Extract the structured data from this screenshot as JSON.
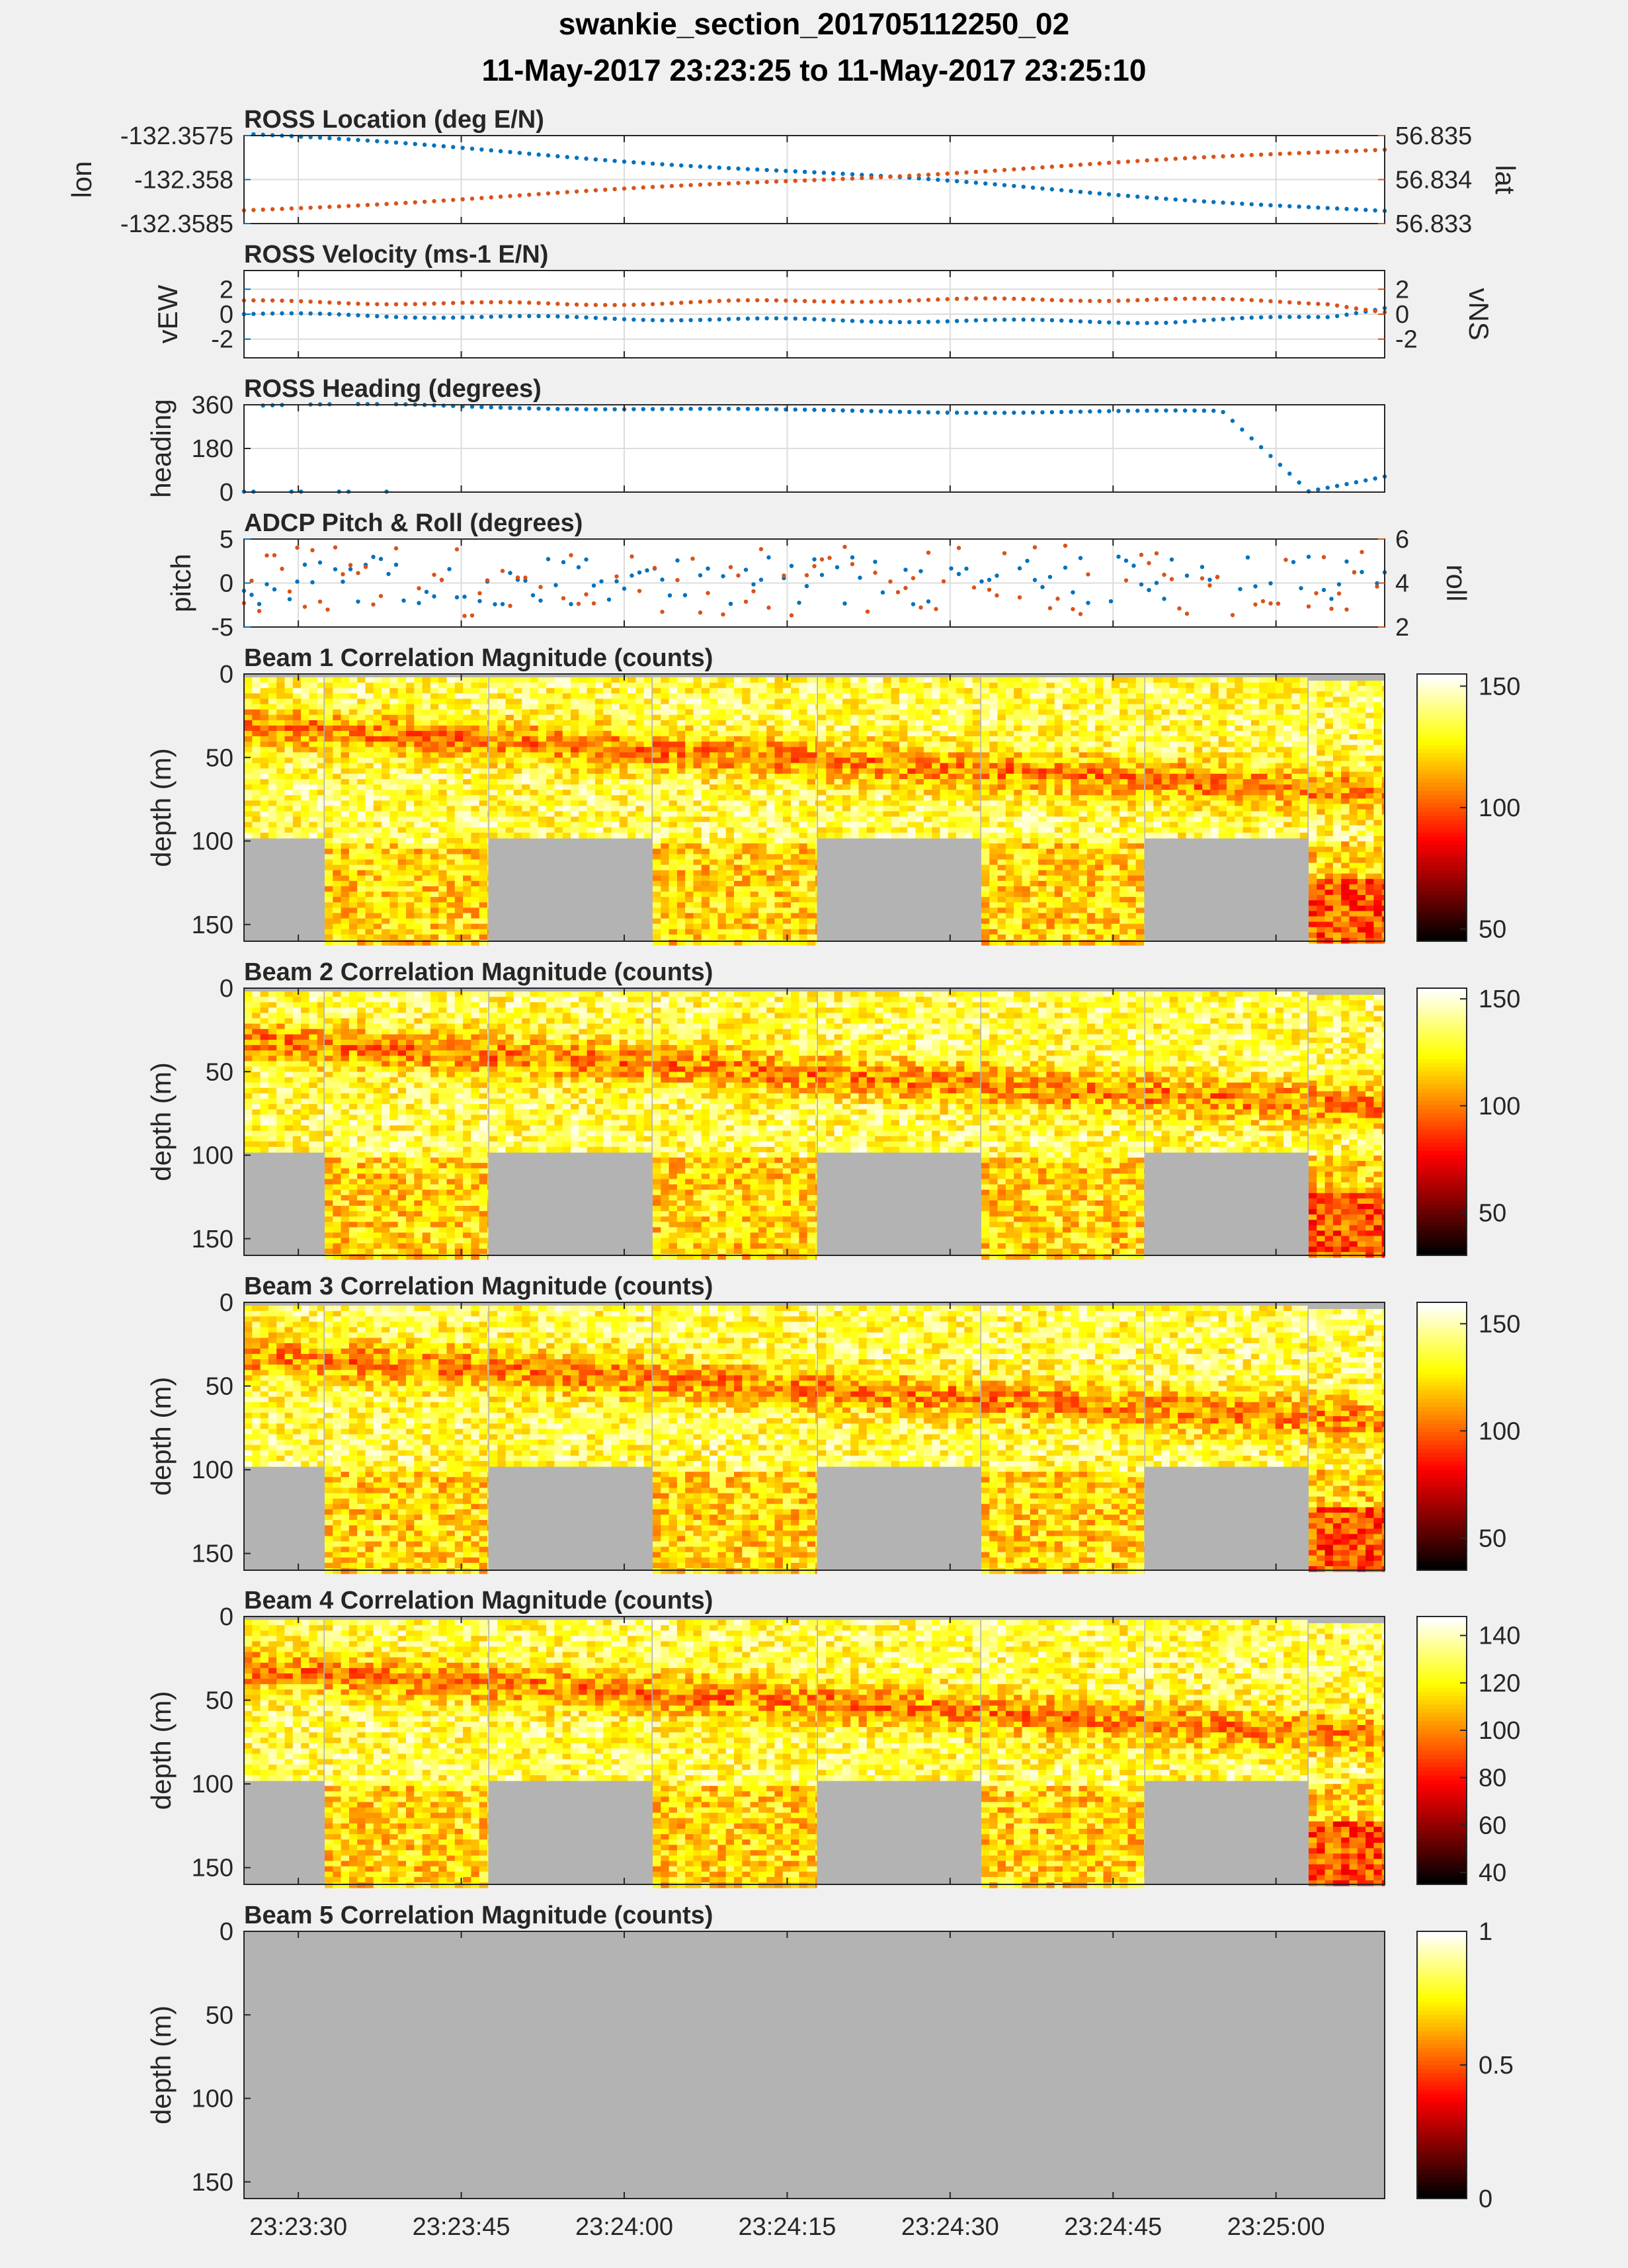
{
  "figure": {
    "title_line1": "swankie_section_201705112250_02",
    "title_line2": "11-May-2017 23:23:25 to 11-May-2017 23:25:10"
  },
  "time_axis": {
    "ticks": [
      "23:23:30",
      "23:23:45",
      "23:24:00",
      "23:24:15",
      "23:24:30",
      "23:24:45",
      "23:25:00"
    ],
    "range": [
      "23:23:25",
      "23:25:10"
    ]
  },
  "colors": {
    "blue": "#0072BD",
    "orange": "#D95319",
    "nodata": "#B3B3B3",
    "axes_bg": "#FFFFFF",
    "figure_bg": "#F0F0F0",
    "colormap": "hot"
  },
  "chart_data": [
    {
      "type": "scatter",
      "title": "ROSS Location (deg E/N)",
      "ylabel": "lon",
      "ylabel_right": "lat",
      "ylim": [
        -132.3585,
        -132.3575
      ],
      "ylim_right": [
        56.833,
        56.835
      ],
      "yticks": [
        "-132.3575",
        "-132.358",
        "-132.3585"
      ],
      "yticks_right": [
        "56.835",
        "56.834",
        "56.833"
      ],
      "series": [
        {
          "name": "lon",
          "axis": "left",
          "color": "#0072BD",
          "x": [
            "23:23:25",
            "23:25:10"
          ],
          "y": [
            -132.35748,
            -132.35837
          ]
        },
        {
          "name": "lat",
          "axis": "right",
          "color": "#D95319",
          "x": [
            "23:23:25",
            "23:25:10"
          ],
          "y": [
            56.8333,
            56.8347
          ]
        }
      ],
      "grid": true
    },
    {
      "type": "scatter",
      "title": "ROSS Velocity (ms-1 E/N)",
      "ylabel": "vEW",
      "ylabel_right": "vNS",
      "ylim": [
        -3.5,
        3.5
      ],
      "ylim_right": [
        -3.5,
        3.5
      ],
      "yticks": [
        "2",
        "0",
        "-2"
      ],
      "yticks_right": [
        "2",
        "0",
        "-2"
      ],
      "series": [
        {
          "name": "vEW",
          "axis": "left",
          "color": "#0072BD",
          "x": [
            "23:23:25",
            "23:23:55",
            "23:24:20",
            "23:24:50",
            "23:25:05",
            "23:25:10"
          ],
          "y": [
            0,
            -0.3,
            -0.5,
            -0.6,
            -0.2,
            0.6
          ]
        },
        {
          "name": "vNS",
          "axis": "right",
          "color": "#D95319",
          "x": [
            "23:23:25",
            "23:23:55",
            "23:24:20",
            "23:24:50",
            "23:25:05",
            "23:25:10"
          ],
          "y": [
            1.0,
            0.8,
            1.1,
            1.2,
            0.9,
            0.2
          ]
        }
      ],
      "grid": true
    },
    {
      "type": "scatter",
      "title": "ROSS Heading (degrees)",
      "ylabel": "heading",
      "ylim": [
        0,
        360
      ],
      "yticks": [
        "360",
        "180",
        "0"
      ],
      "series": [
        {
          "name": "heading",
          "axis": "left",
          "color": "#0072BD",
          "x": [
            "23:23:25",
            "23:23:40",
            "23:24:15",
            "23:24:55",
            "23:25:03",
            "23:25:10"
          ],
          "y": [
            355,
            358,
            335,
            330,
            5,
            70
          ]
        }
      ],
      "grid": true
    },
    {
      "type": "scatter",
      "title": "ADCP Pitch & Roll (degrees)",
      "ylabel": "pitch",
      "ylabel_right": "roll",
      "ylim": [
        -5,
        5
      ],
      "ylim_right": [
        2,
        6
      ],
      "yticks": [
        "5",
        "0",
        "-5"
      ],
      "yticks_right": [
        "6",
        "4",
        "2"
      ],
      "series": [
        {
          "name": "pitch",
          "axis": "left",
          "color": "#0072BD",
          "x": [
            "23:23:25",
            "23:25:10"
          ],
          "y": [
            0.5,
            0.5
          ]
        },
        {
          "name": "roll",
          "axis": "right",
          "color": "#D95319",
          "x": [
            "23:23:25",
            "23:25:10"
          ],
          "y": [
            3.9,
            3.9
          ]
        }
      ],
      "grid": true
    },
    {
      "type": "heatmap",
      "title": "Beam 1 Correlation Magnitude (counts)",
      "ylabel": "depth (m)",
      "ylim": [
        0,
        160
      ],
      "yticks": [
        "0",
        "50",
        "100",
        "150"
      ],
      "colorbar": {
        "range": [
          45,
          155
        ],
        "ticks": [
          "150",
          "100",
          "50"
        ]
      }
    },
    {
      "type": "heatmap",
      "title": "Beam 2 Correlation Magnitude (counts)",
      "ylabel": "depth (m)",
      "ylim": [
        0,
        160
      ],
      "yticks": [
        "0",
        "50",
        "100",
        "150"
      ],
      "colorbar": {
        "range": [
          30,
          155
        ],
        "ticks": [
          "150",
          "100",
          "50"
        ]
      }
    },
    {
      "type": "heatmap",
      "title": "Beam 3 Correlation Magnitude (counts)",
      "ylabel": "depth (m)",
      "ylim": [
        0,
        160
      ],
      "yticks": [
        "0",
        "50",
        "100",
        "150"
      ],
      "colorbar": {
        "range": [
          35,
          160
        ],
        "ticks": [
          "150",
          "100",
          "50"
        ]
      }
    },
    {
      "type": "heatmap",
      "title": "Beam 4 Correlation Magnitude (counts)",
      "ylabel": "depth (m)",
      "ylim": [
        0,
        160
      ],
      "yticks": [
        "0",
        "50",
        "100",
        "150"
      ],
      "colorbar": {
        "range": [
          35,
          148
        ],
        "ticks": [
          "140",
          "120",
          "100",
          "80",
          "60",
          "40"
        ]
      }
    },
    {
      "type": "heatmap",
      "title": "Beam 5 Correlation Magnitude (counts)",
      "ylabel": "depth (m)",
      "ylim": [
        0,
        160
      ],
      "yticks": [
        "0",
        "50",
        "100",
        "150"
      ],
      "colorbar": {
        "range": [
          0,
          1
        ],
        "ticks": [
          "1",
          "0.5",
          "0"
        ]
      }
    }
  ]
}
